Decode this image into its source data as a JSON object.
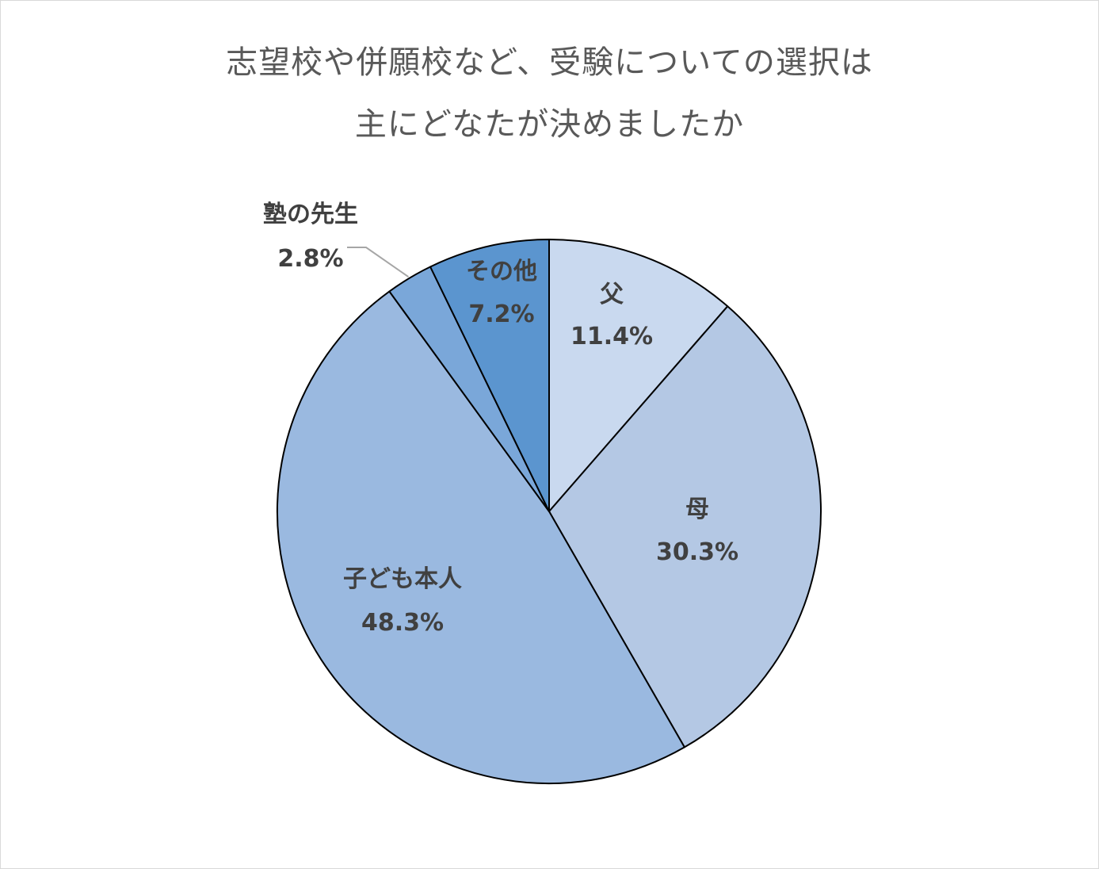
{
  "title_lines": [
    "志望校や併願校など、受験についての選択は",
    "主にどなたが決めましたか"
  ],
  "chart_data": {
    "type": "pie",
    "title": "志望校や併願校など、受験についての選択は主にどなたが決めましたか",
    "start_angle_deg": 0,
    "direction": "clockwise",
    "slices": [
      {
        "label": "父",
        "value": 11.4,
        "value_label": "11.4%",
        "color": "#c9d9ef"
      },
      {
        "label": "母",
        "value": 30.3,
        "value_label": "30.3%",
        "color": "#b4c8e4"
      },
      {
        "label": "子ども本人",
        "value": 48.3,
        "value_label": "48.3%",
        "color": "#9ab9e0"
      },
      {
        "label": "塾の先生",
        "value": 2.8,
        "value_label": "2.8%",
        "color": "#7aa7d9"
      },
      {
        "label": "その他",
        "value": 7.2,
        "value_label": "7.2%",
        "color": "#5b95cf"
      }
    ],
    "slice_edge_color": "#000000",
    "leader_line_color": "#a6a6a6"
  }
}
